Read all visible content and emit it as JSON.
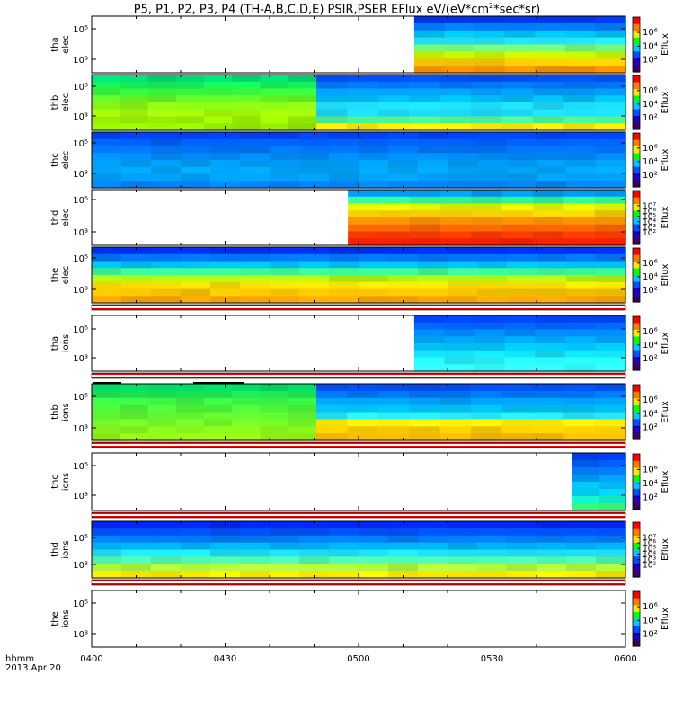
{
  "title_parts": [
    "P5, P1, P2, P3, P4 (TH-A,B,C,D,E) PSIR,PSER EFlux eV/(eV*cm",
    "2",
    "*sec*sr)"
  ],
  "colorbar_label": "Eflux",
  "xaxis": {
    "ticks": [
      "0400",
      "0430",
      "0500",
      "0530",
      "0600"
    ],
    "range_minutes": [
      0,
      120
    ],
    "label_line1": "hhmm",
    "label_line2": "2013 Apr 20"
  },
  "chart_data": {
    "type": "heatmap",
    "title": "P5, P1, P2, P3, P4 (TH-A,B,C,D,E) PSIR,PSER EFlux eV/(eV*cm2*sec*sr)",
    "x_unit": "minutes after 0400 UT, 2013 Apr 20",
    "y_scale": "log",
    "colorbar_scale": "log",
    "panels": [
      {
        "name": "tha elec",
        "ylabel": [
          "tha",
          "elec"
        ],
        "yticks": [
          "10⁵",
          "10³"
        ],
        "data_start_min": 72.5,
        "data_end_min": 120,
        "colorbar_ticks": [
          "10⁶",
          "10⁴",
          "10²"
        ],
        "profile": [
          "#0039ff",
          "#0080ff",
          "#00c8ff",
          "#27eaff",
          "#7aff7a",
          "#c8ff00",
          "#ffd200",
          "#ff9600"
        ]
      },
      {
        "name": "thb elec",
        "ylabel": [
          "thb",
          "elec"
        ],
        "yticks": [
          "10⁵",
          "10³"
        ],
        "data_start_min": 0,
        "data_end_min": 120,
        "colorbar_ticks": [
          "10⁶",
          "10⁴",
          "10²"
        ],
        "segments": [
          {
            "from": 0,
            "to": 50.5,
            "profile": [
              "#00e07a",
              "#14f25a",
              "#3cff3c",
              "#64ff2a",
              "#8cff14",
              "#a8ff0a",
              "#a0ff00",
              "#96f000"
            ]
          },
          {
            "from": 50.5,
            "to": 120,
            "profile": [
              "#0050ff",
              "#0078ff",
              "#00a0ff",
              "#00c0ff",
              "#1ee0ff",
              "#1ee0ff",
              "#50ff9a",
              "#fff000"
            ]
          }
        ]
      },
      {
        "name": "thc elec",
        "ylabel": [
          "thc",
          "elec"
        ],
        "yticks": [
          "10⁵",
          "10³"
        ],
        "data_start_min": 0,
        "data_end_min": 120,
        "colorbar_ticks": [
          "10⁶",
          "10⁴",
          "10²"
        ],
        "profile": [
          "#0046ff",
          "#0060ff",
          "#0078ff",
          "#0090ff",
          "#00a0ff",
          "#00aaff",
          "#00a0ff",
          "#0088ff"
        ]
      },
      {
        "name": "thd elec",
        "ylabel": [
          "thd",
          "elec"
        ],
        "yticks": [
          "10⁵",
          "10³"
        ],
        "data_start_min": 57.6,
        "data_end_min": 120,
        "colorbar_ticks": [
          "10⁷",
          "10⁶",
          "10⁵",
          "10⁴",
          "10³",
          "10²"
        ],
        "profile": [
          "#00a0ff",
          "#32ff96",
          "#e6ff00",
          "#ffd200",
          "#ff9600",
          "#ff6400",
          "#ff3c00",
          "#ff1e00"
        ]
      },
      {
        "name": "the elec",
        "ylabel": [
          "the",
          "elec"
        ],
        "yticks": [
          "10⁵",
          "10³"
        ],
        "data_start_min": 0,
        "data_end_min": 120,
        "colorbar_ticks": [
          "10⁶",
          "10⁴",
          "10²"
        ],
        "profile": [
          "#0030ff",
          "#0078ff",
          "#00c8ff",
          "#3cff96",
          "#b4ff14",
          "#ffe600",
          "#ffc800",
          "#ffaa00"
        ]
      },
      {
        "name": "tha ions",
        "ylabel": [
          "tha",
          "ions"
        ],
        "yticks": [
          "10⁵",
          "10³"
        ],
        "data_start_min": 72.5,
        "data_end_min": 120,
        "colorbar_ticks": [
          "10⁶",
          "10⁴",
          "10²"
        ],
        "profile": [
          "#0046ff",
          "#0064ff",
          "#008cff",
          "#00aaff",
          "#00c8ff",
          "#14e6ff",
          "#28f5ff",
          "#32ffff"
        ]
      },
      {
        "name": "thb ions",
        "ylabel": [
          "thb",
          "ions"
        ],
        "yticks": [
          "10⁵",
          "10³"
        ],
        "data_start_min": 0,
        "data_end_min": 120,
        "colorbar_ticks": [
          "10⁶",
          "10⁴",
          "10²"
        ],
        "segments": [
          {
            "from": 0,
            "to": 50.5,
            "profile": [
              "#00dc64",
              "#1ef05a",
              "#3cff46",
              "#50ff3c",
              "#64ff32",
              "#78ff28",
              "#8cff1e",
              "#96ff14"
            ]
          },
          {
            "from": 50.5,
            "to": 120,
            "profile": [
              "#0050ff",
              "#0078ff",
              "#00a0ff",
              "#00c8ff",
              "#28f0ff",
              "#fff000",
              "#ffd200",
              "#ffbe00"
            ]
          }
        ]
      },
      {
        "name": "thc ions",
        "ylabel": [
          "thc",
          "ions"
        ],
        "yticks": [
          "10⁵",
          "10³"
        ],
        "data_start_min": 108,
        "data_end_min": 120,
        "colorbar_ticks": [
          "10⁶",
          "10⁴",
          "10²"
        ],
        "profile": [
          "#0040ff",
          "#0060ff",
          "#0080ff",
          "#00a0ff",
          "#00c0ff",
          "#00dcff",
          "#14f0c8",
          "#32ff78"
        ]
      },
      {
        "name": "thd ions",
        "ylabel": [
          "thd",
          "ions"
        ],
        "yticks": [
          "10⁵",
          "10³"
        ],
        "data_start_min": 0,
        "data_end_min": 120,
        "colorbar_ticks": [
          "10⁷",
          "10⁶",
          "10⁵",
          "10⁴",
          "10³",
          "10²"
        ],
        "profile": [
          "#0028ff",
          "#0050ff",
          "#0080ff",
          "#00b4ff",
          "#1ee6ff",
          "#50ffb4",
          "#b4ff3c",
          "#fff000"
        ]
      },
      {
        "name": "the ions",
        "ylabel": [
          "the",
          "ions"
        ],
        "yticks": [
          "10⁵",
          "10³"
        ],
        "data_start_min": null,
        "data_end_min": null,
        "colorbar_ticks": [
          "10⁶",
          "10⁴",
          "10²"
        ],
        "profile": []
      }
    ]
  }
}
